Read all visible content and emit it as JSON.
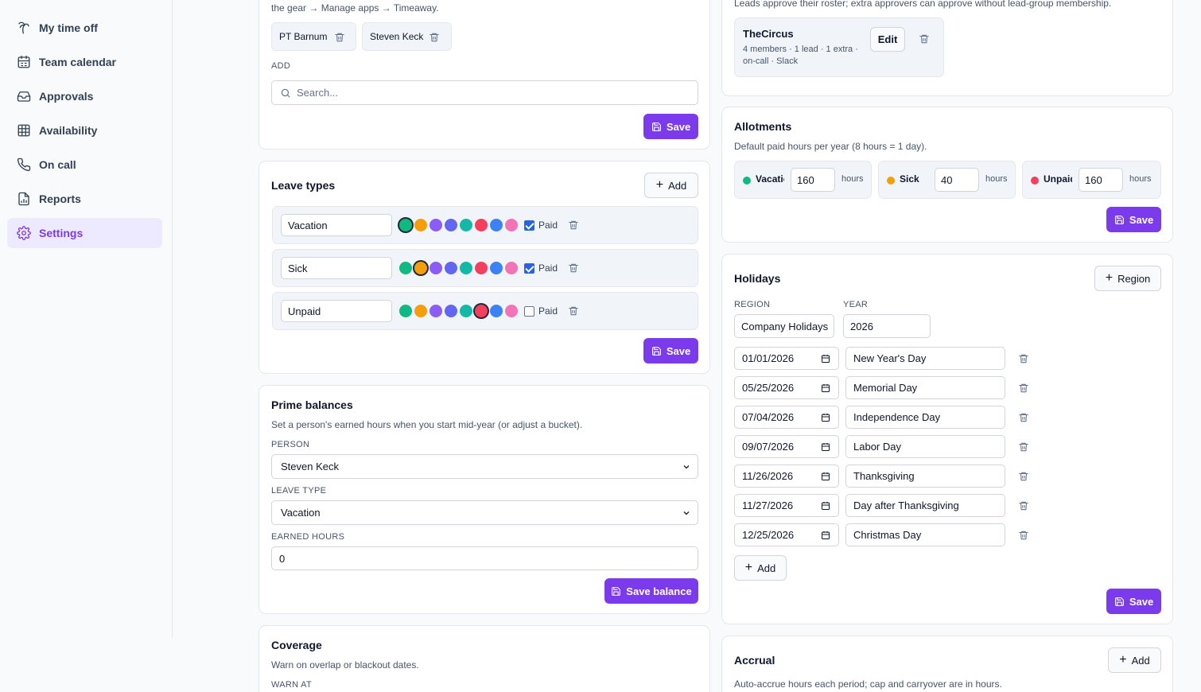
{
  "nav": [
    {
      "label": "My time off",
      "icon": "palm-tree-icon"
    },
    {
      "label": "Team calendar",
      "icon": "calendar-icon"
    },
    {
      "label": "Approvals",
      "icon": "inbox-icon"
    },
    {
      "label": "Availability",
      "icon": "grid-icon"
    },
    {
      "label": "On call",
      "icon": "phone-icon"
    },
    {
      "label": "Reports",
      "icon": "report-icon"
    },
    {
      "label": "Settings",
      "icon": "gear-icon",
      "active": true
    }
  ],
  "admins": {
    "help": "the gear → Manage apps → Timeaway.",
    "chips": [
      "PT Barnum",
      "Steven Keck"
    ],
    "add_label": "ADD",
    "search_placeholder": "Search...",
    "save": "Save"
  },
  "leave_types": {
    "title": "Leave types",
    "add": "Add",
    "palette": [
      "#10b981",
      "#f59e0b",
      "#8b5cf6",
      "#6366f1",
      "#14b8a6",
      "#f43f5e",
      "#3b82f6",
      "#f472b6"
    ],
    "rows": [
      {
        "name": "Vacation",
        "selected": 0,
        "paid": true
      },
      {
        "name": "Sick",
        "selected": 1,
        "paid": true
      },
      {
        "name": "Unpaid",
        "selected": 5,
        "paid": false
      }
    ],
    "paid_label": "Paid",
    "save": "Save"
  },
  "prime": {
    "title": "Prime balances",
    "desc": "Set a person's earned hours when you start mid-year (or adjust a bucket).",
    "person_label": "PERSON",
    "person": "Steven Keck",
    "leave_label": "LEAVE TYPE",
    "leave": "Vacation",
    "earned_label": "EARNED HOURS",
    "earned": "0",
    "save": "Save balance"
  },
  "coverage": {
    "title": "Coverage",
    "desc": "Warn on overlap or blackout dates.",
    "warn_label": "WARN AT"
  },
  "groups": {
    "help": "Leads approve their roster; extra approvers can approve without lead-group membership.",
    "group_name": "TheCircus",
    "group_meta1": "4 members · 1 lead · 1 extra ·",
    "group_meta2": "on-call · Slack",
    "edit": "Edit"
  },
  "allotments": {
    "title": "Allotments",
    "desc": "Default paid hours per year (8 hours = 1 day).",
    "items": [
      {
        "name": "Vacation",
        "color": "#10b981",
        "hours": "160"
      },
      {
        "name": "Sick",
        "color": "#f59e0b",
        "hours": "40"
      },
      {
        "name": "Unpaid",
        "color": "#f43f5e",
        "hours": "160"
      }
    ],
    "unit": "hours",
    "save": "Save"
  },
  "holidays": {
    "title": "Holidays",
    "region_btn": "Region",
    "region_label": "REGION",
    "region": "Company Holidays",
    "year_label": "YEAR",
    "year": "2026",
    "items": [
      {
        "date": "01/01/2026",
        "name": "New Year's Day"
      },
      {
        "date": "05/25/2026",
        "name": "Memorial Day"
      },
      {
        "date": "07/04/2026",
        "name": "Independence Day"
      },
      {
        "date": "09/07/2026",
        "name": "Labor Day"
      },
      {
        "date": "11/26/2026",
        "name": "Thanksgiving"
      },
      {
        "date": "11/27/2026",
        "name": "Day after Thanksgiving"
      },
      {
        "date": "12/25/2026",
        "name": "Christmas Day"
      }
    ],
    "add": "Add",
    "save": "Save"
  },
  "accrual": {
    "title": "Accrual",
    "add": "Add",
    "desc": "Auto-accrue hours each period; cap and carryover are in hours."
  }
}
